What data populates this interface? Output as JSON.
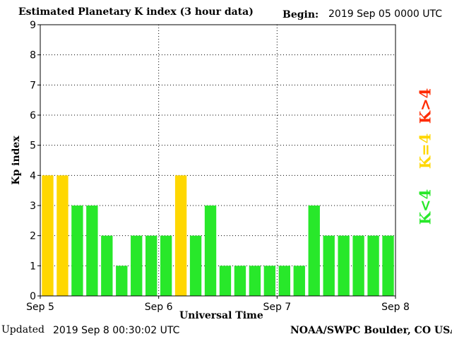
{
  "header": {
    "title": "Estimated Planetary K index (3 hour data)",
    "begin_label": "Begin:",
    "begin_value": "2019 Sep 05 0000 UTC"
  },
  "footer": {
    "updated_label": "Updated",
    "updated_value": "2019 Sep  8 00:30:02 UTC",
    "credit": "NOAA/SWPC Boulder, CO USA"
  },
  "legend": {
    "high": {
      "label": "K>4",
      "color": "#ff2b00"
    },
    "mid": {
      "label": "K=4",
      "color": "#ffd700"
    },
    "low": {
      "label": "K<4",
      "color": "#28e82a"
    }
  },
  "chart_data": {
    "type": "bar",
    "title": "Estimated Planetary K index (3 hour data)",
    "xlabel": "Universal Time",
    "ylabel": "Kp index",
    "ylim": [
      0,
      9
    ],
    "yticks": [
      "0",
      "1",
      "2",
      "3",
      "4",
      "5",
      "6",
      "7",
      "8",
      "9"
    ],
    "xticks": [
      "Sep 5",
      "Sep 6",
      "Sep 7",
      "Sep 8"
    ],
    "grid": true,
    "interval_hours": 3,
    "values": [
      4,
      4,
      3,
      3,
      2,
      1,
      2,
      2,
      2,
      4,
      2,
      3,
      1,
      1,
      1,
      1,
      1,
      1,
      3,
      2,
      2,
      2,
      2,
      2
    ],
    "colors": {
      "below_4": "#28e82a",
      "equal_4": "#ffd700",
      "above_4": "#ff2b00"
    }
  }
}
